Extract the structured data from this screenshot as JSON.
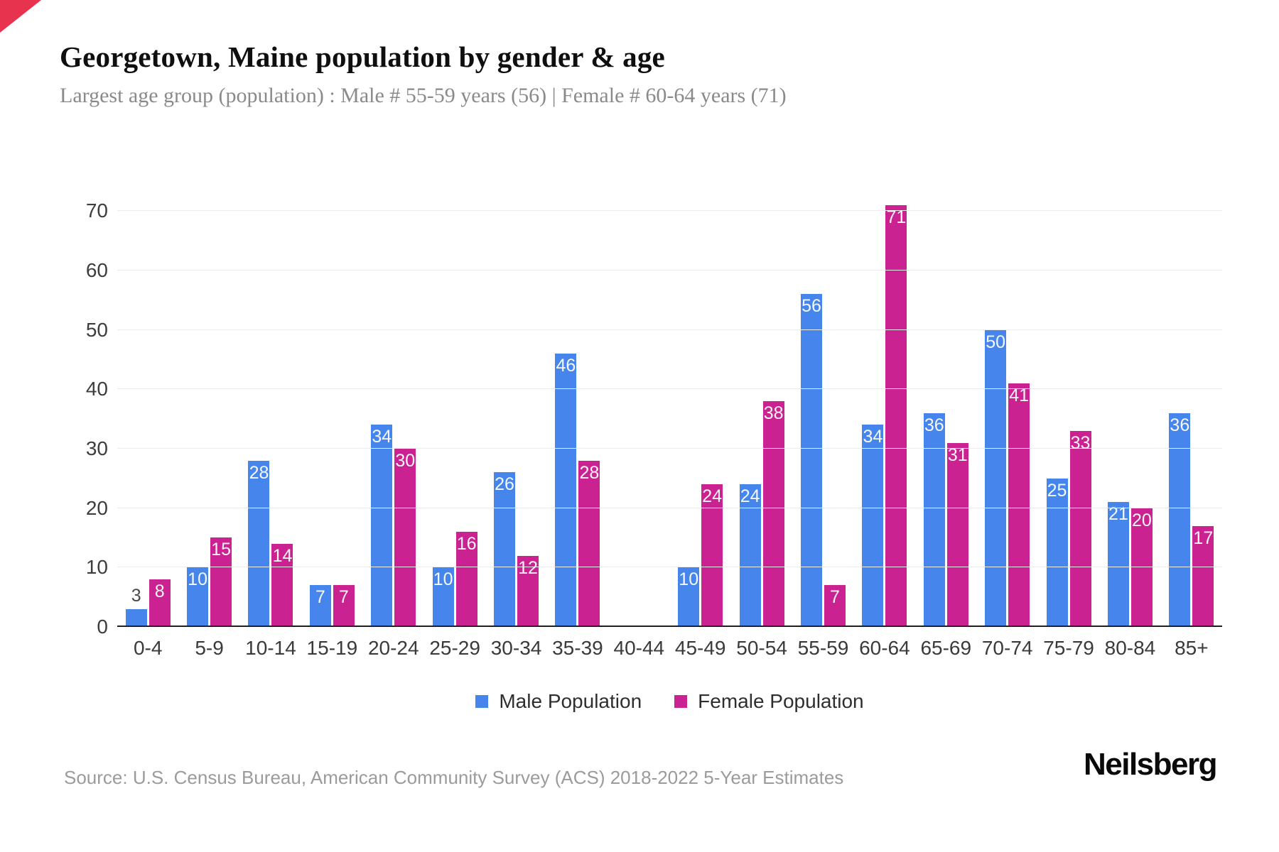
{
  "header": {
    "title": "Georgetown, Maine population by gender & age",
    "subtitle": "Largest age group (population) : Male # 55-59 years (56) | Female # 60-64 years (71)"
  },
  "footer": {
    "source": "Source: U.S. Census Bureau, American Community Survey (ACS) 2018-2022 5-Year Estimates",
    "brand_logo": "Neilsberg"
  },
  "accent": {
    "corner_color": "#e8334e"
  },
  "chart_data": {
    "type": "bar",
    "title": "Georgetown, Maine population by gender & age",
    "subtitle": "Largest age group (population) : Male # 55-59 years (56) | Female # 60-64 years (71)",
    "categories": [
      "0-4",
      "5-9",
      "10-14",
      "15-19",
      "20-24",
      "25-29",
      "30-34",
      "35-39",
      "40-44",
      "45-49",
      "50-54",
      "55-59",
      "60-64",
      "65-69",
      "70-74",
      "75-79",
      "80-84",
      "85+"
    ],
    "series": [
      {
        "name": "Male Population",
        "color": "#4685ec",
        "values": [
          3,
          10,
          28,
          7,
          34,
          10,
          26,
          46,
          0,
          10,
          24,
          56,
          34,
          36,
          50,
          25,
          21,
          36
        ]
      },
      {
        "name": "Female Population",
        "color": "#ca2290",
        "values": [
          8,
          15,
          14,
          7,
          30,
          16,
          12,
          28,
          0,
          24,
          38,
          7,
          71,
          31,
          41,
          33,
          20,
          17
        ]
      }
    ],
    "xlabel": "",
    "ylabel": "",
    "ylim": [
      0,
      70
    ],
    "yticks": [
      0,
      10,
      20,
      30,
      40,
      50,
      60,
      70
    ],
    "grid": "horizontal",
    "legend_position": "bottom",
    "value_labels": "shown on bars, white inside bar; dark above bar when bar too short; hidden for zero"
  }
}
